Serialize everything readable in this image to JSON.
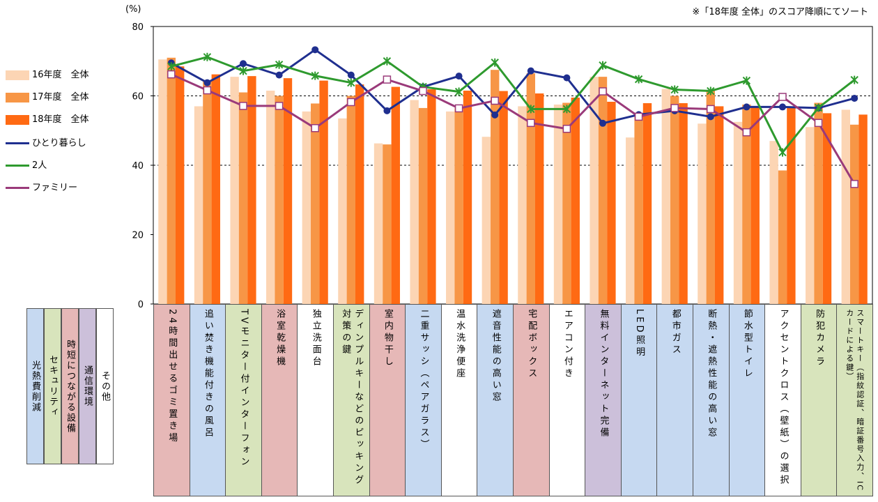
{
  "note": "※「18年度 全体」のスコア降順にてソート",
  "unit": "(%)",
  "category_colors": {
    "光熱費削減": "#c6d9f1",
    "セキュリティ": "#d8e4bc",
    "時短につながる設備": "#e6b8b7",
    "通信環境": "#ccc0da",
    "その他": "#ffffff"
  },
  "category_legend": [
    "光熱費削減",
    "セキュリティ",
    "時短につながる設備",
    "通信環境",
    "その他"
  ],
  "categories_group": [
    "時短につながる設備",
    "光熱費削減",
    "セキュリティ",
    "時短につながる設備",
    "その他",
    "セキュリティ",
    "時短につながる設備",
    "光熱費削減",
    "その他",
    "光熱費削減",
    "時短につながる設備",
    "その他",
    "通信環境",
    "光熱費削減",
    "光熱費削減",
    "光熱費削減",
    "光熱費削減",
    "その他",
    "セキュリティ",
    "セキュリティ"
  ],
  "chart_data": {
    "type": "bar",
    "categories": [
      "24時間出せるゴミ置き場",
      "追い焚き機能付きの風呂",
      "TVモニター付インターフォン",
      "浴室乾燥機",
      "独立洗面台",
      "ディンプルキーなどのピッキング対策の鍵",
      "室内物干し",
      "二重サッシ（ペアガラス）",
      "温水洗浄便座",
      "遮音性能の高い窓",
      "宅配ボックス",
      "エアコン付き",
      "無料インターネット完備",
      "LED照明",
      "都市ガス",
      "断熱・遮熱性能の高い窓",
      "節水型トイレ",
      "アクセントクロス（壁紙）の選択",
      "防犯カメラ",
      "スマートキー（指紋認証、暗証番号入力、ICカードによる鍵）"
    ],
    "ylim": [
      0,
      80
    ],
    "yticks": [
      0,
      20,
      40,
      60,
      80
    ],
    "grid": "dashed at 40, 60, 80",
    "legend_position": "left",
    "series": [
      {
        "name": "16年度　全体",
        "type": "bar",
        "color": "#fcd5b4",
        "values": [
          70.5,
          57,
          65.5,
          61.5,
          55.5,
          53.5,
          46.3,
          58.8,
          55.5,
          48.2,
          57,
          57.5,
          65.5,
          48,
          62,
          52,
          52.5,
          47,
          51,
          56
        ]
      },
      {
        "name": "17年度　全体",
        "type": "bar",
        "color": "#f79646",
        "values": [
          71,
          64.5,
          61,
          60,
          57.8,
          60,
          46,
          56.5,
          56.5,
          67.5,
          66.5,
          58,
          65.5,
          54,
          60,
          61.5,
          57.5,
          38.5,
          58,
          51.7
        ]
      },
      {
        "name": "18年度　全体",
        "type": "bar",
        "color": "#ff6a13",
        "values": [
          68.5,
          66.2,
          65.7,
          65.1,
          64.4,
          63.3,
          62.6,
          61.9,
          61.5,
          61.4,
          60.7,
          59.5,
          58.3,
          57.9,
          57.9,
          57,
          57,
          56.5,
          55,
          54.6
        ]
      },
      {
        "name": "ひとり暮らし",
        "type": "line",
        "color": "#1f2f8f",
        "values": [
          69.5,
          63.8,
          69.3,
          66,
          73.3,
          66,
          55.7,
          62.6,
          65.7,
          54.5,
          67.2,
          65.2,
          52.1,
          54.6,
          55.7,
          54,
          56.8,
          56.8,
          56.5,
          59.3
        ]
      },
      {
        "name": "2人",
        "type": "line",
        "color": "#2e9a2e",
        "values": [
          68.5,
          71.2,
          67.2,
          69,
          65.8,
          63.8,
          70,
          62.6,
          61.2,
          69.6,
          56.2,
          56.2,
          68.8,
          64.8,
          61.8,
          61.4,
          64.4,
          43.7,
          56.6,
          64.6
        ]
      },
      {
        "name": "ファミリー",
        "type": "line",
        "color": "#9a3a7a",
        "values": [
          66.2,
          61.6,
          57.1,
          57.1,
          50.7,
          58.2,
          64.7,
          61.4,
          56.4,
          58.6,
          52.2,
          50.5,
          61.3,
          54,
          56.5,
          56.2,
          49.5,
          59.7,
          52.2,
          34.6
        ]
      }
    ]
  }
}
